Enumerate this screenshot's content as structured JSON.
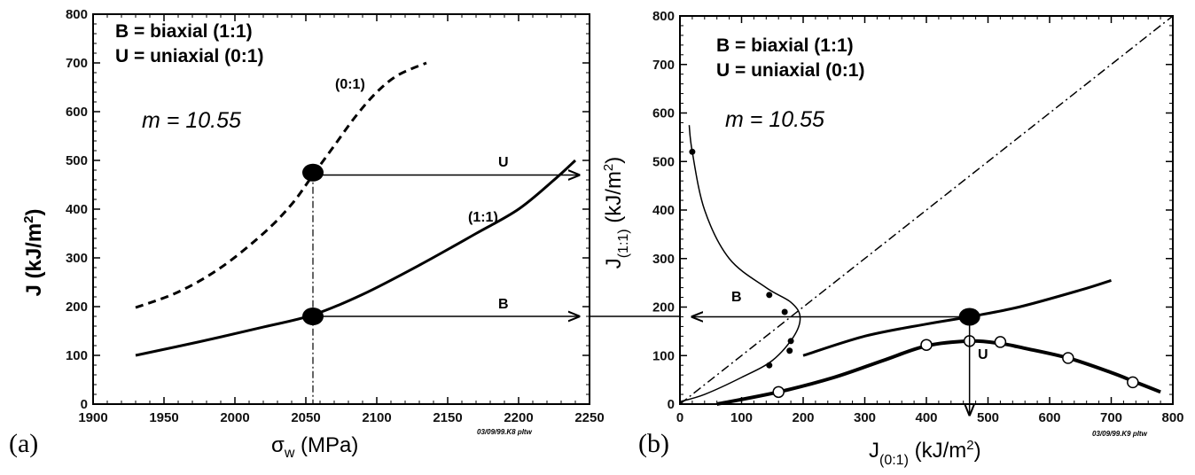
{
  "chart_data": [
    {
      "type": "line",
      "panel_label": "(a)",
      "xlabel": "σw (MPa)",
      "ylabel": "J (kJ/m2)",
      "xlim": [
        1900,
        2250
      ],
      "ylim": [
        0,
        800
      ],
      "xticks": [
        "1900",
        "1950",
        "2000",
        "2050",
        "2100",
        "2150",
        "2200",
        "2250"
      ],
      "yticks": [
        "0",
        "100",
        "200",
        "300",
        "400",
        "500",
        "600",
        "700",
        "800"
      ],
      "legend_lines": [
        "B = biaxial (1:1)",
        "U = uniaxial (0:1)"
      ],
      "m_text": "m = 10.55",
      "stamp": "03/09/99.K8 pltw",
      "series": [
        {
          "name": "(0:1)",
          "style": "dashed",
          "x": [
            1930,
            1960,
            1990,
            2020,
            2040,
            2055,
            2070,
            2085,
            2100,
            2115,
            2135
          ],
          "y": [
            198,
            230,
            280,
            350,
            410,
            470,
            530,
            590,
            640,
            675,
            700
          ]
        },
        {
          "name": "(1:1)",
          "style": "solid",
          "x": [
            1930,
            1975,
            2020,
            2055,
            2090,
            2130,
            2170,
            2200,
            2225,
            2240
          ],
          "y": [
            100,
            128,
            158,
            183,
            225,
            285,
            350,
            400,
            460,
            500
          ]
        }
      ],
      "points": [
        {
          "x": 2055,
          "y": 475
        },
        {
          "x": 2055,
          "y": 180
        }
      ],
      "arrows": [
        {
          "label": "U",
          "x0": 2055,
          "x1": 2250,
          "y": 470
        },
        {
          "label": "B",
          "x0": 2055,
          "x1": 2250,
          "y": 180
        }
      ],
      "annotations": [
        "(0:1)",
        "(1:1)",
        "U",
        "B"
      ]
    },
    {
      "type": "line",
      "panel_label": "(b)",
      "xlabel": "J(0:1) (kJ/m2)",
      "ylabel": "J(1:1) (kJ/m2)",
      "xlim": [
        0,
        800
      ],
      "ylim": [
        0,
        800
      ],
      "xticks": [
        "0",
        "100",
        "200",
        "300",
        "400",
        "500",
        "600",
        "700",
        "800"
      ],
      "yticks": [
        "0",
        "100",
        "200",
        "300",
        "400",
        "500",
        "600",
        "700",
        "800"
      ],
      "legend_lines": [
        "B = biaxial (1:1)",
        "U = uniaxial (0:1)"
      ],
      "m_text": "m = 10.55",
      "stamp": "03/09/99.K9 pltw",
      "series": [
        {
          "name": "diagonal",
          "style": "dashdot",
          "x": [
            0,
            800
          ],
          "y": [
            0,
            800
          ]
        },
        {
          "name": "B",
          "style": "thin",
          "x": [
            15,
            20,
            40,
            80,
            140,
            180,
            195,
            185,
            150,
            100,
            40,
            0
          ],
          "y": [
            575,
            520,
            400,
            300,
            240,
            210,
            180,
            140,
            90,
            55,
            20,
            5
          ]
        },
        {
          "name": "B-markers",
          "style": "markers-small",
          "x": [
            20,
            145,
            170,
            180,
            178,
            145
          ],
          "y": [
            520,
            225,
            190,
            130,
            110,
            80
          ]
        },
        {
          "name": "upper",
          "style": "solid",
          "x": [
            200,
            300,
            400,
            470,
            550,
            650,
            700
          ],
          "y": [
            100,
            140,
            165,
            180,
            200,
            235,
            255
          ]
        },
        {
          "name": "U",
          "style": "bold",
          "x": [
            60,
            160,
            250,
            330,
            400,
            470,
            520,
            560,
            630,
            700,
            740,
            780
          ],
          "y": [
            0,
            25,
            55,
            90,
            120,
            130,
            125,
            115,
            95,
            65,
            45,
            25
          ]
        },
        {
          "name": "U-markers",
          "style": "markers-open",
          "x": [
            160,
            400,
            470,
            520,
            630,
            735
          ],
          "y": [
            25,
            122,
            130,
            128,
            95,
            45
          ]
        }
      ],
      "points": [
        {
          "x": 470,
          "y": 180
        }
      ],
      "arrows": [
        {
          "label": "B",
          "x0": 470,
          "x1": 0,
          "y": 180
        },
        {
          "label": "U",
          "x": 470,
          "y0": 180,
          "y1": 0
        }
      ],
      "annotations": [
        "B",
        "U"
      ]
    }
  ]
}
